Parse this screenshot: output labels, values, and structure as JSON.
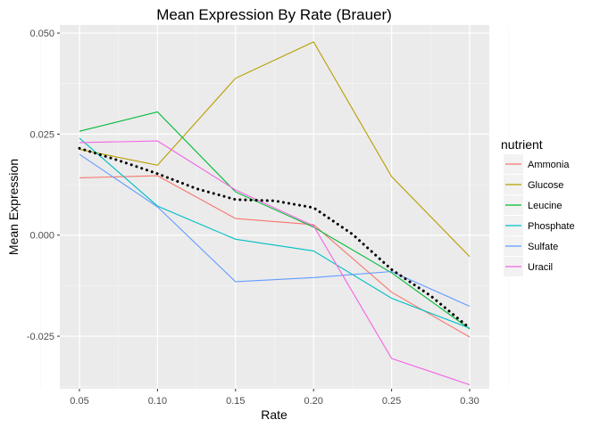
{
  "chart_data": {
    "type": "line",
    "title": "Mean Expression By Rate (Brauer)",
    "xlabel": "Rate",
    "ylabel": "Mean Expression",
    "xlim": [
      0.05,
      0.3
    ],
    "ylim": [
      -0.038,
      0.052
    ],
    "x": [
      0.05,
      0.1,
      0.15,
      0.2,
      0.25,
      0.3
    ],
    "x_tick_labels": [
      "0.05",
      "0.10",
      "0.15",
      "0.20",
      "0.25",
      "0.30"
    ],
    "y_ticks": [
      0.05,
      0.025,
      0.0,
      -0.025
    ],
    "y_tick_labels": [
      "0.050",
      "0.025",
      "0.000",
      "-0.025"
    ],
    "grid": true,
    "legend": {
      "title": "nutrient",
      "placement": "right"
    },
    "series": [
      {
        "name": "Ammonia",
        "color": "#F8766D",
        "values": [
          0.0142,
          0.0147,
          0.0041,
          0.0026,
          -0.0141,
          -0.0252
        ]
      },
      {
        "name": "Glucose",
        "color": "#B79F00",
        "values": [
          0.0212,
          0.0173,
          0.0388,
          0.0478,
          0.0145,
          -0.0053
        ]
      },
      {
        "name": "Leucine",
        "color": "#00BA38",
        "values": [
          0.0257,
          0.0305,
          0.0107,
          0.002,
          -0.0093,
          -0.0232
        ]
      },
      {
        "name": "Phosphate",
        "color": "#00BFC4",
        "values": [
          0.024,
          0.0072,
          -0.001,
          -0.0039,
          -0.0156,
          -0.023
        ]
      },
      {
        "name": "Sulfate",
        "color": "#619CFF",
        "values": [
          0.02,
          0.007,
          -0.0115,
          -0.0105,
          -0.009,
          -0.0176
        ]
      },
      {
        "name": "Uracil",
        "color": "#F564E3",
        "values": [
          0.0229,
          0.0233,
          0.0112,
          0.0023,
          -0.0305,
          -0.037
        ]
      }
    ],
    "trend": {
      "style": "dotted",
      "color": "#000000",
      "x": [
        0.05,
        0.075,
        0.1,
        0.125,
        0.15,
        0.175,
        0.2,
        0.225,
        0.25,
        0.275,
        0.3
      ],
      "values": [
        0.0215,
        0.0185,
        0.0152,
        0.0115,
        0.0088,
        0.0085,
        0.0068,
        0.0002,
        -0.0085,
        -0.015,
        -0.023
      ]
    }
  }
}
